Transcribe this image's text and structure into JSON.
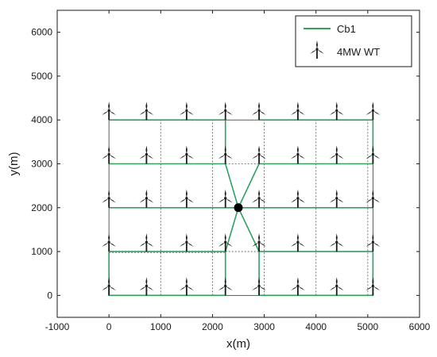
{
  "chart_data": {
    "type": "scatter",
    "xlabel": "x(m)",
    "ylabel": "y(m)",
    "xlim": [
      -1000,
      6000
    ],
    "ylim": [
      -500,
      6500
    ],
    "xticks": [
      -1000,
      0,
      1000,
      2000,
      3000,
      4000,
      5000,
      6000
    ],
    "yticks": [
      0,
      1000,
      2000,
      3000,
      4000,
      5000,
      6000
    ],
    "legend": {
      "placement": "top-right",
      "entries": [
        {
          "label": "Cb1",
          "marker": "line",
          "color": "#2ca25f"
        },
        {
          "label": "4MW WT",
          "marker": "turbine",
          "color": "#1a1a1a"
        }
      ]
    },
    "substation": {
      "x": 2500,
      "y": 2000
    },
    "turbine_x": [
      0,
      725,
      1500,
      2250,
      2900,
      3650,
      4400,
      5100
    ],
    "turbine_y": [
      0,
      1000,
      2000,
      3000,
      4000
    ],
    "cable_color": "#2ca25f",
    "cables": [
      [
        [
          0,
          4000
        ],
        [
          2250,
          4000
        ],
        [
          2250,
          3000
        ]
      ],
      [
        [
          2900,
          4000
        ],
        [
          5100,
          4000
        ],
        [
          5100,
          3000
        ]
      ],
      [
        [
          0,
          3000
        ],
        [
          2250,
          3000
        ],
        [
          2500,
          2000
        ]
      ],
      [
        [
          5100,
          3000
        ],
        [
          2900,
          3000
        ],
        [
          2500,
          2000
        ]
      ],
      [
        [
          0,
          2000
        ],
        [
          2500,
          2000
        ]
      ],
      [
        [
          5100,
          2000
        ],
        [
          2500,
          2000
        ]
      ],
      [
        [
          0,
          1000
        ],
        [
          2250,
          1000
        ],
        [
          2500,
          2000
        ]
      ],
      [
        [
          5100,
          1000
        ],
        [
          2900,
          1000
        ],
        [
          2500,
          2000
        ]
      ],
      [
        [
          0,
          1000
        ],
        [
          0,
          0
        ],
        [
          2250,
          0
        ],
        [
          2250,
          1000
        ]
      ],
      [
        [
          5100,
          1000
        ],
        [
          5100,
          0
        ],
        [
          2900,
          0
        ],
        [
          2900,
          1000
        ]
      ]
    ],
    "dotted_lines": [
      [
        [
          1000,
          0
        ],
        [
          1000,
          4000
        ]
      ],
      [
        [
          2000,
          0
        ],
        [
          2000,
          4000
        ]
      ],
      [
        [
          3000,
          0
        ],
        [
          3000,
          4000
        ]
      ],
      [
        [
          4000,
          0
        ],
        [
          4000,
          4000
        ]
      ],
      [
        [
          5000,
          0
        ],
        [
          5000,
          4000
        ]
      ],
      [
        [
          2250,
          3000
        ],
        [
          2900,
          3000
        ]
      ],
      [
        [
          2250,
          1000
        ],
        [
          2900,
          1000
        ]
      ],
      [
        [
          0,
          980
        ],
        [
          2250,
          980
        ]
      ]
    ],
    "boundary": [
      [
        0,
        0
      ],
      [
        5100,
        4000
      ]
    ]
  }
}
